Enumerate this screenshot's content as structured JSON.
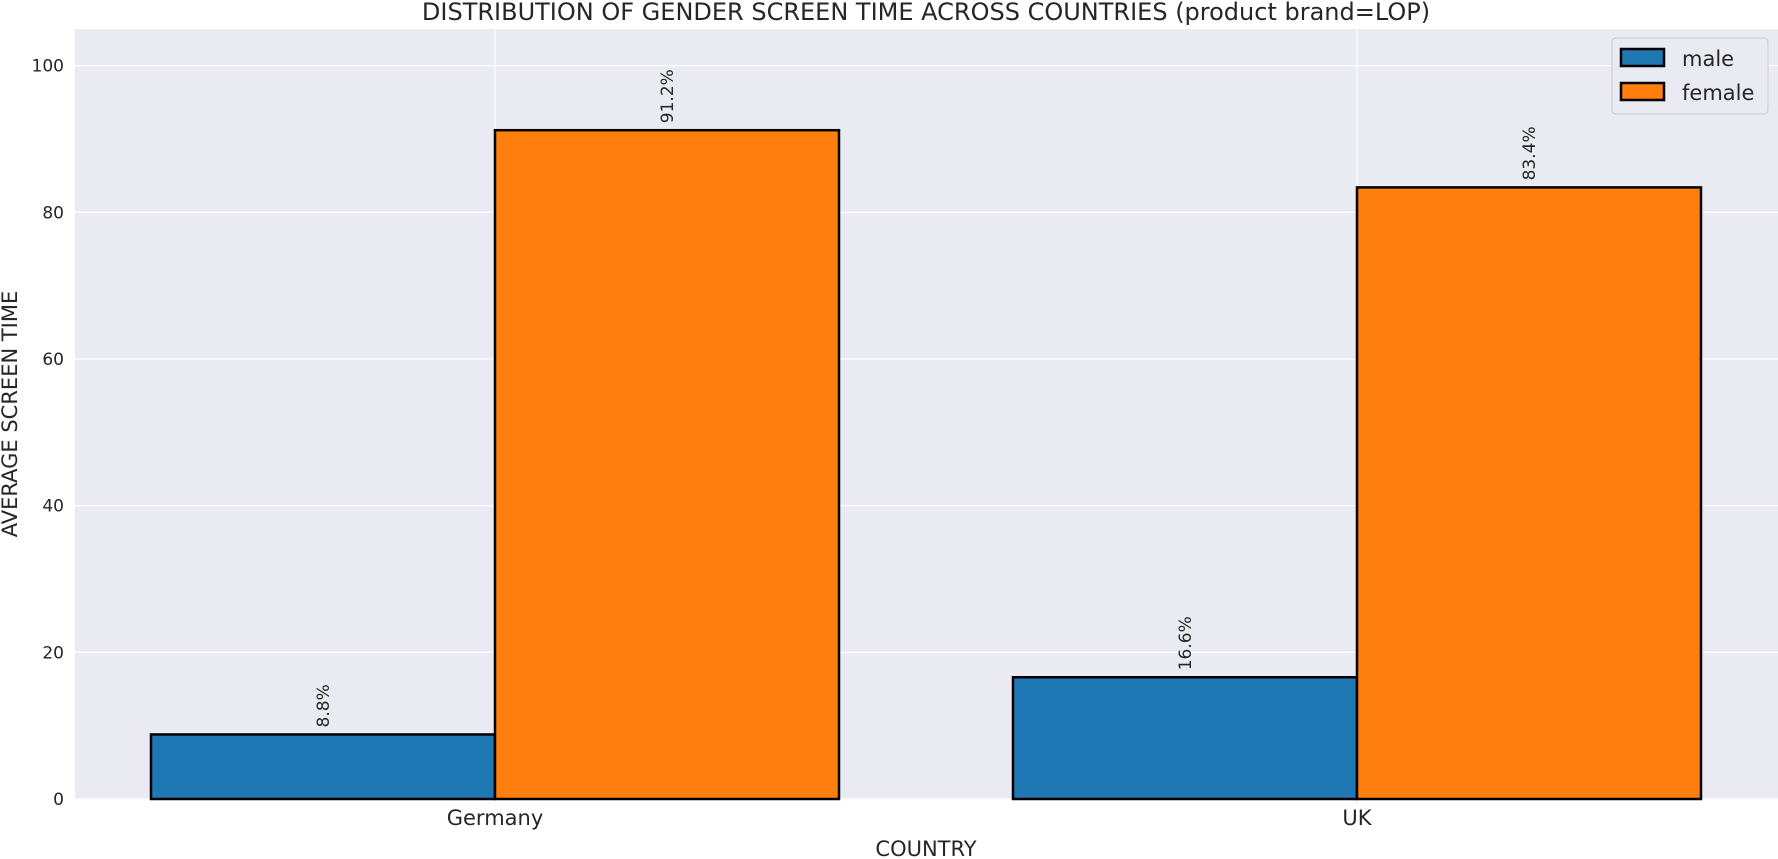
{
  "chart_data": {
    "type": "bar",
    "title": "DISTRIBUTION OF GENDER SCREEN TIME ACROSS COUNTRIES (product brand=LOP)",
    "xlabel": "COUNTRY",
    "ylabel": "AVERAGE SCREEN TIME",
    "categories": [
      "Germany",
      "UK"
    ],
    "series": [
      {
        "name": "male",
        "values": [
          8.8,
          16.6
        ],
        "labels": [
          "8.8%",
          "16.6%"
        ],
        "color": "#1f77b4"
      },
      {
        "name": "female",
        "values": [
          91.2,
          83.4
        ],
        "labels": [
          "91.2%",
          "83.4%"
        ],
        "color": "#ff7f0e"
      }
    ],
    "ylim": [
      0,
      105
    ],
    "yticks": [
      0,
      20,
      40,
      60,
      80,
      100
    ],
    "grid": true,
    "legend_position": "top-right",
    "background": "#eaeaf2",
    "gridline_color": "#ffffff",
    "bar_edge_color": "#000000"
  }
}
